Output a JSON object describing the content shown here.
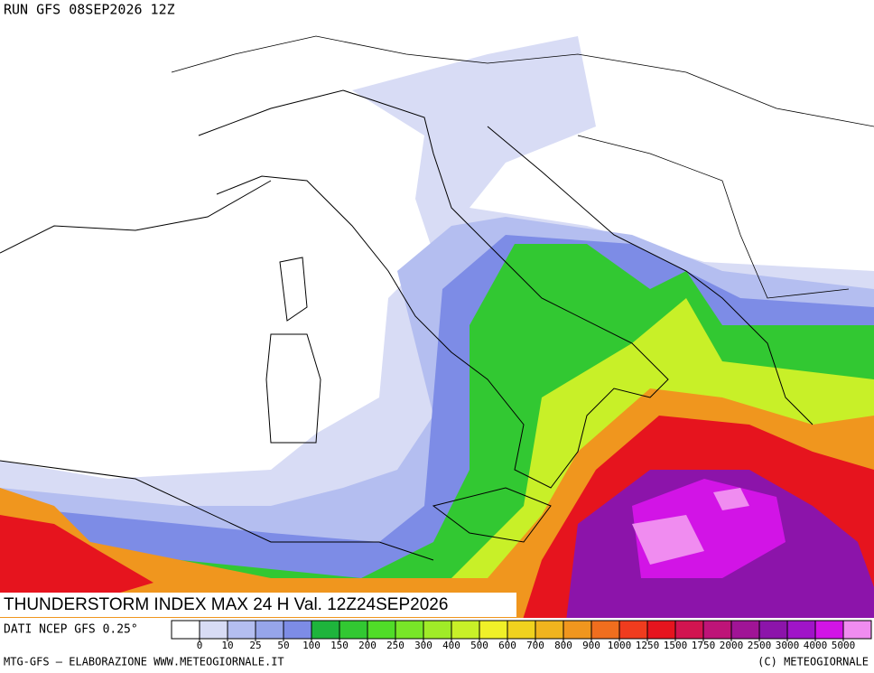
{
  "header": {
    "run": "RUN GFS 08SEP2026 12Z"
  },
  "title": "THUNDERSTORM INDEX MAX 24 H Val. 12Z24SEP2026",
  "source": "DATI NCEP GFS 0.25°",
  "footer": {
    "left": "MTG-GFS — ELABORAZIONE WWW.METEOGIORNALE.IT",
    "right": "(C) METEOGIORNALE"
  },
  "legend": {
    "ticks": [
      0,
      10,
      25,
      50,
      100,
      150,
      200,
      250,
      300,
      400,
      500,
      600,
      700,
      800,
      900,
      1000,
      1250,
      1500,
      1750,
      2000,
      2500,
      3000,
      4000,
      5000
    ],
    "colors": [
      "#ffffff",
      "#d8dcf5",
      "#b4bef0",
      "#96a5ea",
      "#7d8ce6",
      "#1eb43c",
      "#32c832",
      "#50dc28",
      "#78e628",
      "#a0eb28",
      "#c8f028",
      "#f0f028",
      "#f0d21e",
      "#f0b41e",
      "#f0961e",
      "#f06e1e",
      "#f03c1e",
      "#e6141e",
      "#d21450",
      "#be1478",
      "#a01496",
      "#8c14aa",
      "#a014c8",
      "#d214e6",
      "#f08cf0"
    ]
  }
}
